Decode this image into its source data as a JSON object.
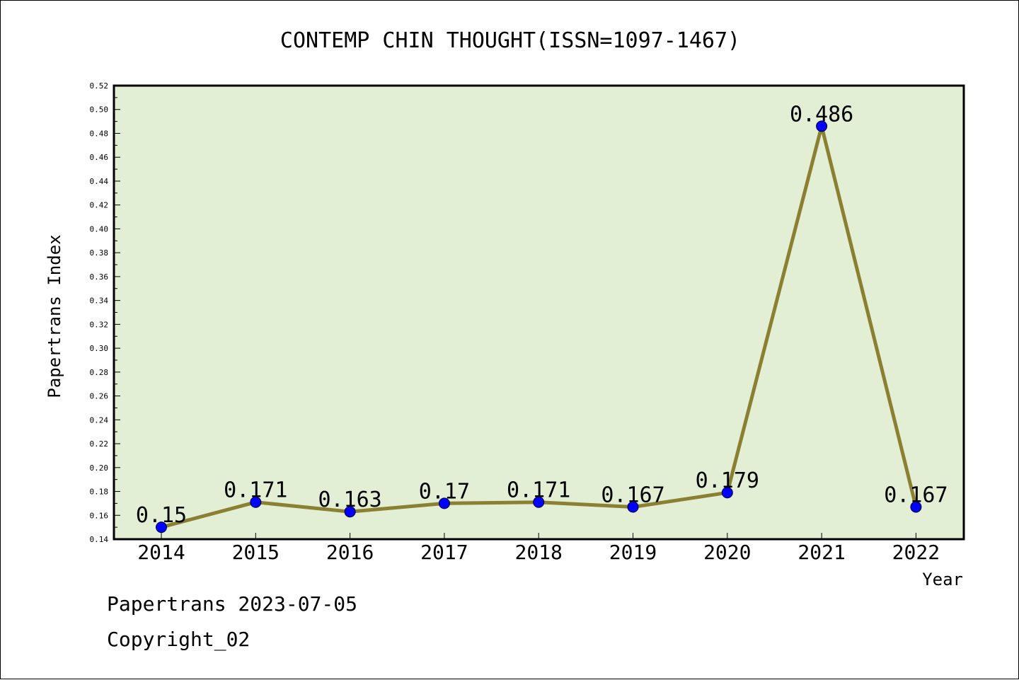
{
  "chart_data": {
    "type": "line",
    "title": "CONTEMP CHIN THOUGHT(ISSN=1097-1467)",
    "xlabel": "Year",
    "ylabel": "Papertrans Index",
    "categories": [
      "2014",
      "2015",
      "2016",
      "2017",
      "2018",
      "2019",
      "2020",
      "2021",
      "2022"
    ],
    "series": [
      {
        "values": [
          0.15,
          0.171,
          0.163,
          0.17,
          0.171,
          0.167,
          0.179,
          0.486,
          0.167
        ],
        "labels": [
          "0.15",
          "0.171",
          "0.163",
          "0.17",
          "0.171",
          "0.167",
          "0.179",
          "0.486",
          "0.167"
        ],
        "line_color": "#8b8032",
        "marker_color": "#0000ff"
      }
    ],
    "ylim": [
      0.14,
      0.52
    ],
    "y_ticks": [
      "0.14",
      "0.16",
      "0.18",
      "0.20",
      "0.22",
      "0.24",
      "0.26",
      "0.28",
      "0.30",
      "0.32",
      "0.34",
      "0.36",
      "0.38",
      "0.40",
      "0.42",
      "0.44",
      "0.46",
      "0.48",
      "0.50",
      "0.52"
    ],
    "plot_background": "#e2efd4",
    "grid": false,
    "legend": "none"
  },
  "footer": {
    "date_line": "Papertrans 2023-07-05",
    "copyright_line": "Copyright_02"
  }
}
